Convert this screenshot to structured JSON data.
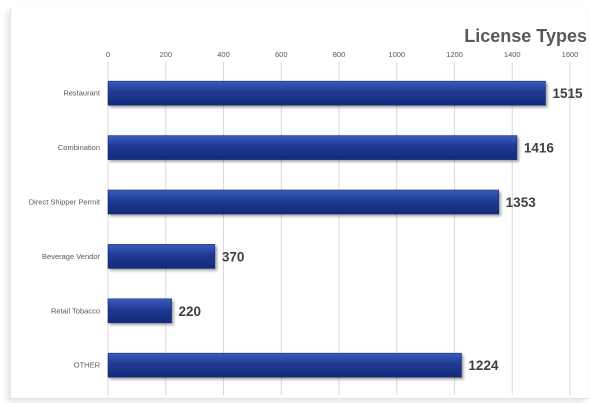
{
  "chart_data": {
    "type": "bar",
    "orientation": "horizontal",
    "title": "License Types",
    "xlabel": "",
    "ylabel": "",
    "categories": [
      "Restaurant",
      "Combination",
      "Direct Shipper Permit",
      "Beverage Vendor",
      "Retail Tobacco",
      "OTHER"
    ],
    "values": [
      1515,
      1416,
      1353,
      370,
      220,
      1224
    ],
    "xlim": [
      0,
      1600
    ],
    "ticks": [
      0,
      200,
      400,
      600,
      800,
      1000,
      1200,
      1400,
      1600
    ],
    "grid": true,
    "axis_position": "top",
    "legend": "none",
    "bar_color": "#1f3a93",
    "bar_color_dark": "#122a78",
    "bar_color_light": "#3b5cc0",
    "gridline_color": "#d9d9d9"
  }
}
